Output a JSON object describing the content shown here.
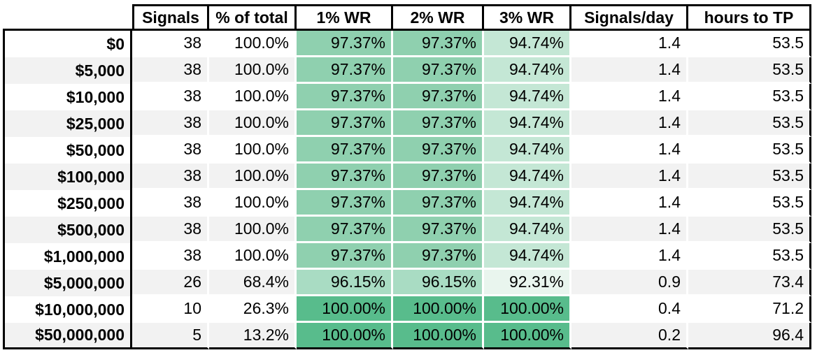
{
  "header": {
    "corner": "",
    "columns": [
      "Signals",
      "% of total",
      "1% WR",
      "2% WR",
      "3% WR",
      "Signals/day",
      "hours to TP"
    ]
  },
  "rows": [
    {
      "label": "$0",
      "values": [
        "38",
        "100.0%",
        "97.37%",
        "97.37%",
        "94.74%",
        "1.4",
        "53.5"
      ],
      "wr_colors": [
        "#8fd0af",
        "#8fd0af",
        "#c4e7d5"
      ]
    },
    {
      "label": "$5,000",
      "values": [
        "38",
        "100.0%",
        "97.37%",
        "97.37%",
        "94.74%",
        "1.4",
        "53.5"
      ],
      "wr_colors": [
        "#8fd0af",
        "#8fd0af",
        "#c4e7d5"
      ]
    },
    {
      "label": "$10,000",
      "values": [
        "38",
        "100.0%",
        "97.37%",
        "97.37%",
        "94.74%",
        "1.4",
        "53.5"
      ],
      "wr_colors": [
        "#8fd0af",
        "#8fd0af",
        "#c4e7d5"
      ]
    },
    {
      "label": "$25,000",
      "values": [
        "38",
        "100.0%",
        "97.37%",
        "97.37%",
        "94.74%",
        "1.4",
        "53.5"
      ],
      "wr_colors": [
        "#8fd0af",
        "#8fd0af",
        "#c4e7d5"
      ]
    },
    {
      "label": "$50,000",
      "values": [
        "38",
        "100.0%",
        "97.37%",
        "97.37%",
        "94.74%",
        "1.4",
        "53.5"
      ],
      "wr_colors": [
        "#8fd0af",
        "#8fd0af",
        "#c4e7d5"
      ]
    },
    {
      "label": "$100,000",
      "values": [
        "38",
        "100.0%",
        "97.37%",
        "97.37%",
        "94.74%",
        "1.4",
        "53.5"
      ],
      "wr_colors": [
        "#8fd0af",
        "#8fd0af",
        "#c4e7d5"
      ]
    },
    {
      "label": "$250,000",
      "values": [
        "38",
        "100.0%",
        "97.37%",
        "97.37%",
        "94.74%",
        "1.4",
        "53.5"
      ],
      "wr_colors": [
        "#8fd0af",
        "#8fd0af",
        "#c4e7d5"
      ]
    },
    {
      "label": "$500,000",
      "values": [
        "38",
        "100.0%",
        "97.37%",
        "97.37%",
        "94.74%",
        "1.4",
        "53.5"
      ],
      "wr_colors": [
        "#8fd0af",
        "#8fd0af",
        "#c4e7d5"
      ]
    },
    {
      "label": "$1,000,000",
      "values": [
        "38",
        "100.0%",
        "97.37%",
        "97.37%",
        "94.74%",
        "1.4",
        "53.5"
      ],
      "wr_colors": [
        "#8fd0af",
        "#8fd0af",
        "#c4e7d5"
      ]
    },
    {
      "label": "$5,000,000",
      "values": [
        "26",
        "68.4%",
        "96.15%",
        "96.15%",
        "92.31%",
        "0.9",
        "73.4"
      ],
      "wr_colors": [
        "#a9dcc3",
        "#a9dcc3",
        "#e9f5ee"
      ]
    },
    {
      "label": "$10,000,000",
      "values": [
        "10",
        "26.3%",
        "100.00%",
        "100.00%",
        "100.00%",
        "0.4",
        "71.2"
      ],
      "wr_colors": [
        "#58bc8c",
        "#58bc8c",
        "#58bc8c"
      ]
    },
    {
      "label": "$50,000,000",
      "values": [
        "5",
        "13.2%",
        "100.00%",
        "100.00%",
        "100.00%",
        "0.2",
        "96.4"
      ],
      "wr_colors": [
        "#58bc8c",
        "#58bc8c",
        "#58bc8c"
      ]
    }
  ],
  "colors": {
    "border_black": "#000000",
    "gridline_white": "#ffffff",
    "zebra_gray": "#f2f2f2",
    "wr_green_100": "#58bc8c",
    "wr_green_9737": "#8fd0af",
    "wr_green_9615": "#a9dcc3",
    "wr_green_9474": "#c4e7d5",
    "wr_green_9231": "#e9f5ee"
  },
  "chart_data": {
    "type": "table",
    "columns": [
      "",
      "Signals",
      "% of total",
      "1% WR",
      "2% WR",
      "3% WR",
      "Signals/day",
      "hours to TP"
    ],
    "rows": [
      [
        "$0",
        38,
        "100.0%",
        "97.37%",
        "97.37%",
        "94.74%",
        1.4,
        53.5
      ],
      [
        "$5,000",
        38,
        "100.0%",
        "97.37%",
        "97.37%",
        "94.74%",
        1.4,
        53.5
      ],
      [
        "$10,000",
        38,
        "100.0%",
        "97.37%",
        "97.37%",
        "94.74%",
        1.4,
        53.5
      ],
      [
        "$25,000",
        38,
        "100.0%",
        "97.37%",
        "97.37%",
        "94.74%",
        1.4,
        53.5
      ],
      [
        "$50,000",
        38,
        "100.0%",
        "97.37%",
        "97.37%",
        "94.74%",
        1.4,
        53.5
      ],
      [
        "$100,000",
        38,
        "100.0%",
        "97.37%",
        "97.37%",
        "94.74%",
        1.4,
        53.5
      ],
      [
        "$250,000",
        38,
        "100.0%",
        "97.37%",
        "97.37%",
        "94.74%",
        1.4,
        53.5
      ],
      [
        "$500,000",
        38,
        "100.0%",
        "97.37%",
        "97.37%",
        "94.74%",
        1.4,
        53.5
      ],
      [
        "$1,000,000",
        38,
        "100.0%",
        "97.37%",
        "97.37%",
        "94.74%",
        1.4,
        53.5
      ],
      [
        "$5,000,000",
        26,
        "68.4%",
        "96.15%",
        "96.15%",
        "92.31%",
        0.9,
        73.4
      ],
      [
        "$10,000,000",
        10,
        "26.3%",
        "100.00%",
        "100.00%",
        "100.00%",
        0.4,
        71.2
      ],
      [
        "$50,000,000",
        5,
        "13.2%",
        "100.00%",
        "100.00%",
        "100.00%",
        0.2,
        96.4
      ]
    ],
    "notes_layout": "green heatmap shading on WR columns, darker = higher win rate; zebra-striped rows"
  }
}
